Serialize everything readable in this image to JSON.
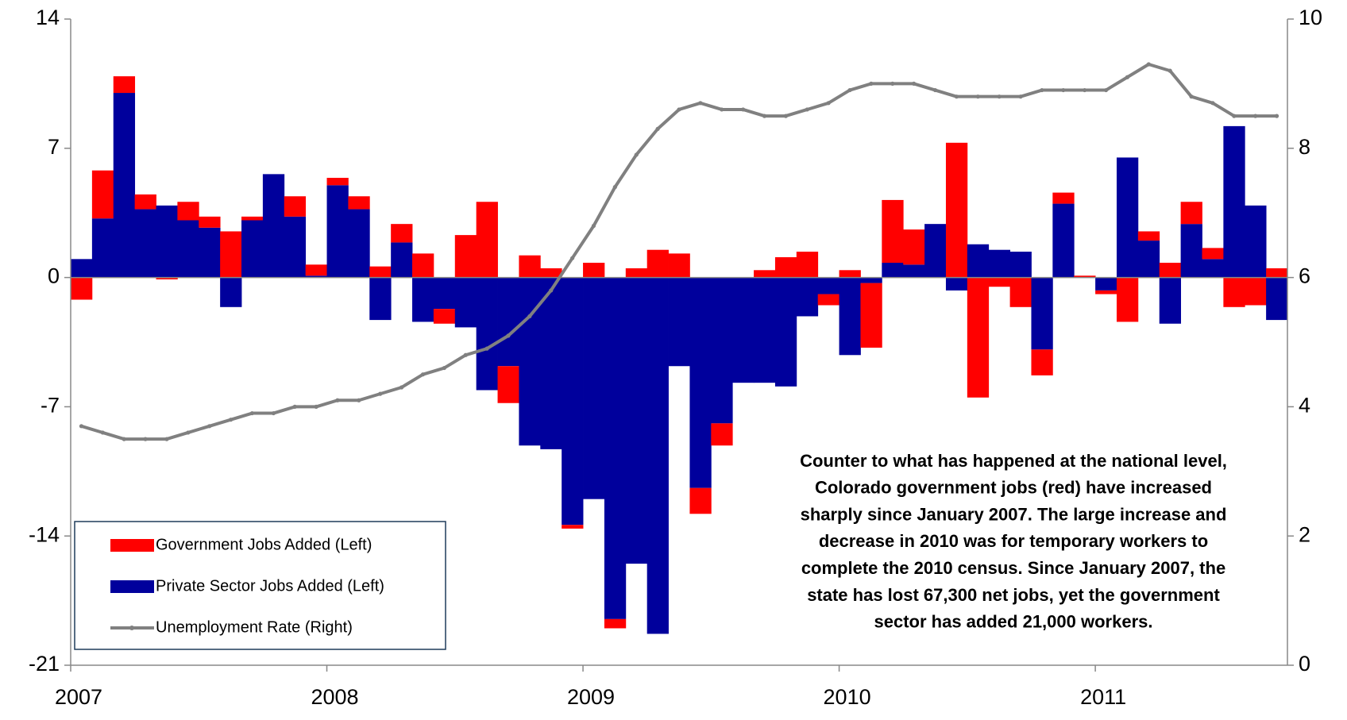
{
  "chart_data": {
    "type": "bar",
    "categories": [
      "2007",
      null,
      null,
      null,
      null,
      null,
      null,
      null,
      null,
      null,
      null,
      null,
      "2008",
      null,
      null,
      null,
      null,
      null,
      null,
      null,
      null,
      null,
      null,
      null,
      "2009",
      null,
      null,
      null,
      null,
      null,
      null,
      null,
      null,
      null,
      null,
      null,
      "2010",
      null,
      null,
      null,
      null,
      null,
      null,
      null,
      null,
      null,
      null,
      null,
      "2011",
      null,
      null,
      null,
      null,
      null,
      null,
      null,
      null
    ],
    "series": [
      {
        "name": "Government Jobs Added (Left)",
        "color": "#ff0000",
        "values": [
          -1.2,
          2.6,
          0.9,
          0.8,
          -0.1,
          1.0,
          0.6,
          2.5,
          0.2,
          0,
          1.1,
          0.6,
          0.4,
          0.7,
          0.6,
          1.0,
          1.3,
          -0.8,
          2.3,
          4.1,
          -2.0,
          1.2,
          0.5,
          -0.2,
          0.8,
          -0.5,
          0.5,
          1.5,
          1.3,
          -1.4,
          -1.2,
          0,
          0.4,
          1.1,
          1.4,
          -0.6,
          0.4,
          -3.5,
          3.4,
          1.9,
          0,
          7.3,
          -6.5,
          -0.5,
          -1.6,
          -1.4,
          0.6,
          0.1,
          -0.2,
          -2.4,
          0.5,
          0.8,
          1.2,
          0.6,
          -1.6,
          -1.5,
          0.5
        ]
      },
      {
        "name": "Private Sector Jobs Added (Left)",
        "color": "#00009c",
        "values": [
          1.0,
          3.2,
          10.0,
          3.7,
          3.9,
          3.1,
          2.7,
          -1.6,
          3.1,
          5.6,
          3.3,
          0.1,
          5.0,
          3.7,
          -2.3,
          1.9,
          -2.4,
          -1.7,
          -2.7,
          -6.1,
          -4.8,
          -9.1,
          -9.3,
          -13.4,
          -12.0,
          -18.5,
          -15.5,
          -19.3,
          -4.8,
          -11.4,
          -7.9,
          -5.7,
          -5.7,
          -5.9,
          -2.1,
          -0.9,
          -4.2,
          -0.3,
          0.8,
          0.7,
          2.9,
          -0.7,
          1.8,
          1.5,
          1.4,
          -3.9,
          4.0,
          0,
          -0.7,
          6.5,
          2.0,
          -2.5,
          2.9,
          1.0,
          8.2,
          3.9,
          -2.3
        ]
      },
      {
        "name": "Unemployment Rate (Right)",
        "color": "#808080",
        "type": "line",
        "axis": "y2",
        "values": [
          3.7,
          3.6,
          3.5,
          3.5,
          3.5,
          3.6,
          3.7,
          3.8,
          3.9,
          3.9,
          4.0,
          4.0,
          4.1,
          4.1,
          4.2,
          4.3,
          4.5,
          4.6,
          4.8,
          4.9,
          5.1,
          5.4,
          5.8,
          6.3,
          6.8,
          7.4,
          7.9,
          8.3,
          8.6,
          8.7,
          8.6,
          8.6,
          8.5,
          8.5,
          8.6,
          8.7,
          8.9,
          9.0,
          9.0,
          9.0,
          8.9,
          8.8,
          8.8,
          8.8,
          8.8,
          8.9,
          8.9,
          8.9,
          8.9,
          9.1,
          9.3,
          9.2,
          8.8,
          8.7,
          8.5,
          8.5,
          8.5
        ]
      }
    ],
    "ylim": [
      -21,
      14
    ],
    "yticks": [
      -21,
      -14,
      -7,
      0,
      7,
      14
    ],
    "y2lim": [
      0,
      10
    ],
    "y2ticks": [
      0,
      2,
      4,
      6,
      8,
      10
    ],
    "legend": "lower left",
    "annotation": [
      "Counter to what has happened at the national level,",
      "Colorado government jobs (red) have increased",
      "sharply since January 2007. The large increase and",
      "decrease in 2010 was for temporary workers to",
      "complete the 2010 census. Since January 2007, the",
      "state has lost 67,300 net jobs, yet the government",
      "sector has added 21,000 workers."
    ]
  }
}
